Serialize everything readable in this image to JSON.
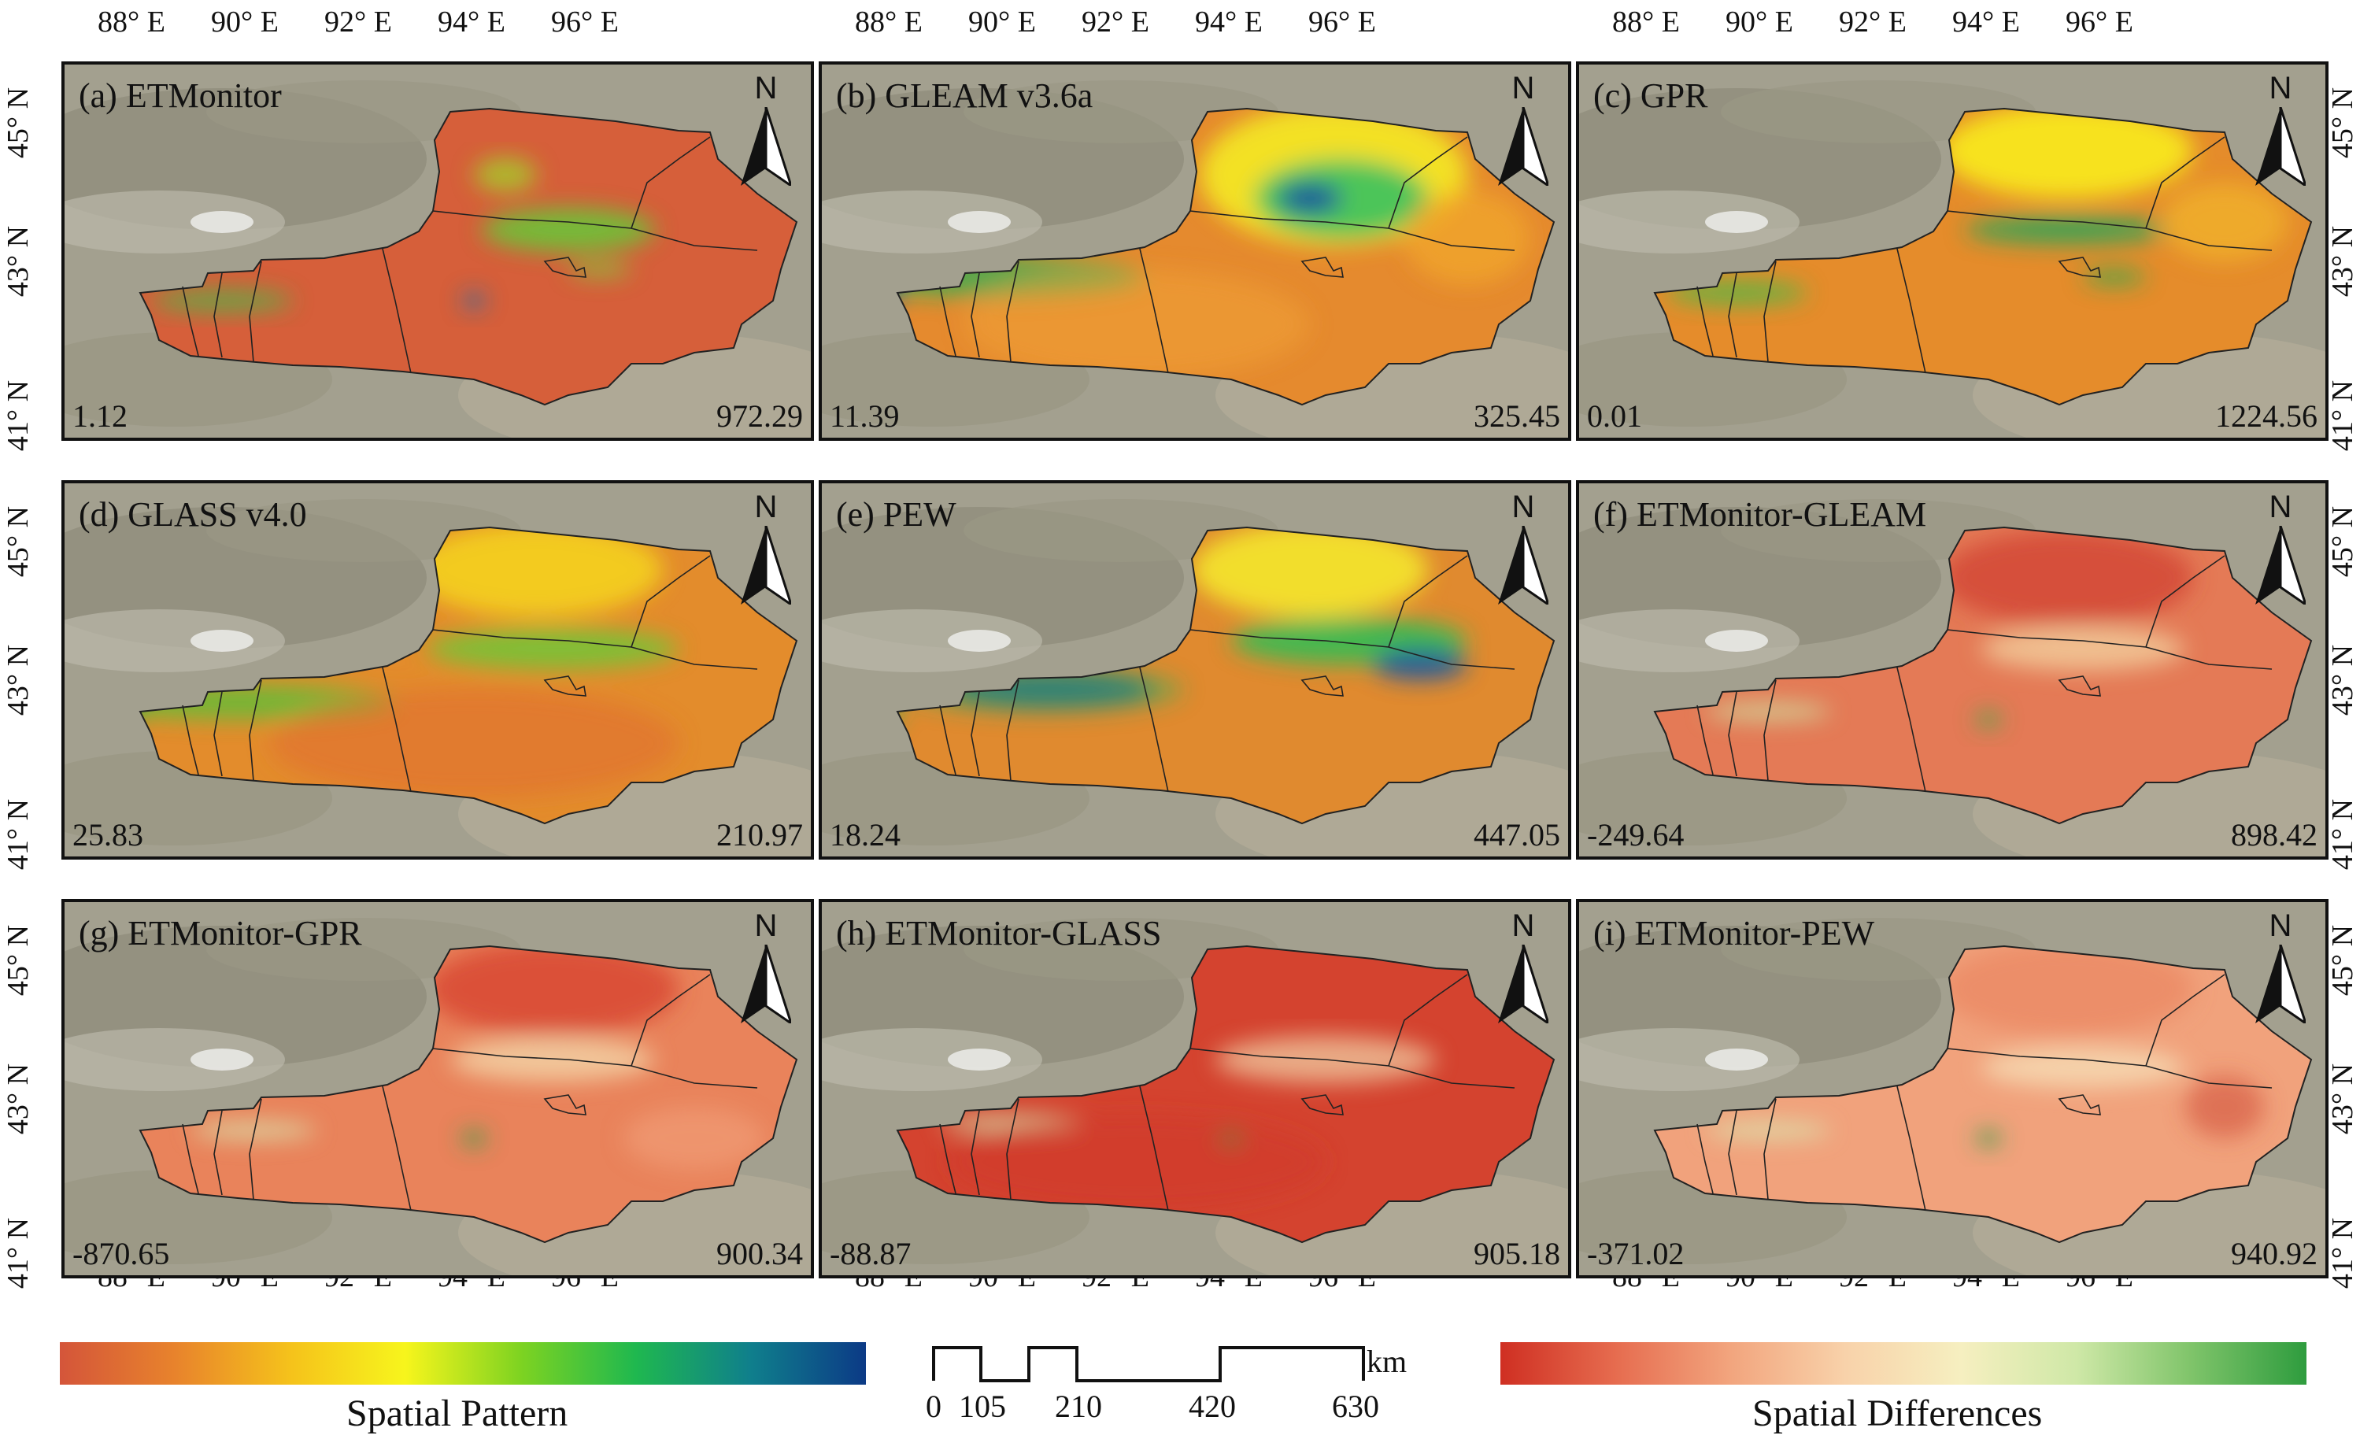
{
  "panels": [
    {
      "title": "(a) ETMonitor",
      "min": "1.12",
      "max": "972.29",
      "scheme": "pattern-a"
    },
    {
      "title": "(b) GLEAM v3.6a",
      "min": "11.39",
      "max": "325.45",
      "scheme": "pattern-b"
    },
    {
      "title": "(c) GPR",
      "min": "0.01",
      "max": "1224.56",
      "scheme": "pattern-c"
    },
    {
      "title": "(d) GLASS v4.0",
      "min": "25.83",
      "max": "210.97",
      "scheme": "pattern-d"
    },
    {
      "title": "(e) PEW",
      "min": "18.24",
      "max": "447.05",
      "scheme": "pattern-e"
    },
    {
      "title": "(f) ETMonitor-GLEAM",
      "min": "-249.64",
      "max": "898.42",
      "scheme": "diff-f"
    },
    {
      "title": "(g) ETMonitor-GPR",
      "min": "-870.65",
      "max": "900.34",
      "scheme": "diff-g"
    },
    {
      "title": "(h) ETMonitor-GLASS",
      "min": "-88.87",
      "max": "905.18",
      "scheme": "diff-h"
    },
    {
      "title": "(i) ETMonitor-PEW",
      "min": "-371.02",
      "max": "940.92",
      "scheme": "diff-i"
    }
  ],
  "north_label": "N",
  "lon_ticks": [
    "88° E",
    "90° E",
    "92° E",
    "94° E",
    "96° E"
  ],
  "lat_ticks": [
    "45° N",
    "43° N",
    "41° N"
  ],
  "legend": {
    "pattern_label": "Spatial Pattern",
    "diff_label": "Spatial Differences",
    "pattern_colors": [
      "#d4553a",
      "#e8832c",
      "#f5c21b",
      "#f7f51c",
      "#7ed321",
      "#1fb84f",
      "#0f7f8c",
      "#0c3a86"
    ],
    "diff_colors": [
      "#cf2f22",
      "#e66c4f",
      "#f2a57e",
      "#f8d2aa",
      "#f6efc0",
      "#cfe8a7",
      "#7fc46a",
      "#2e9c3e"
    ]
  },
  "scale_bar": {
    "unit": "km",
    "labels": [
      "0",
      "105",
      "210",
      "420",
      "630"
    ]
  }
}
